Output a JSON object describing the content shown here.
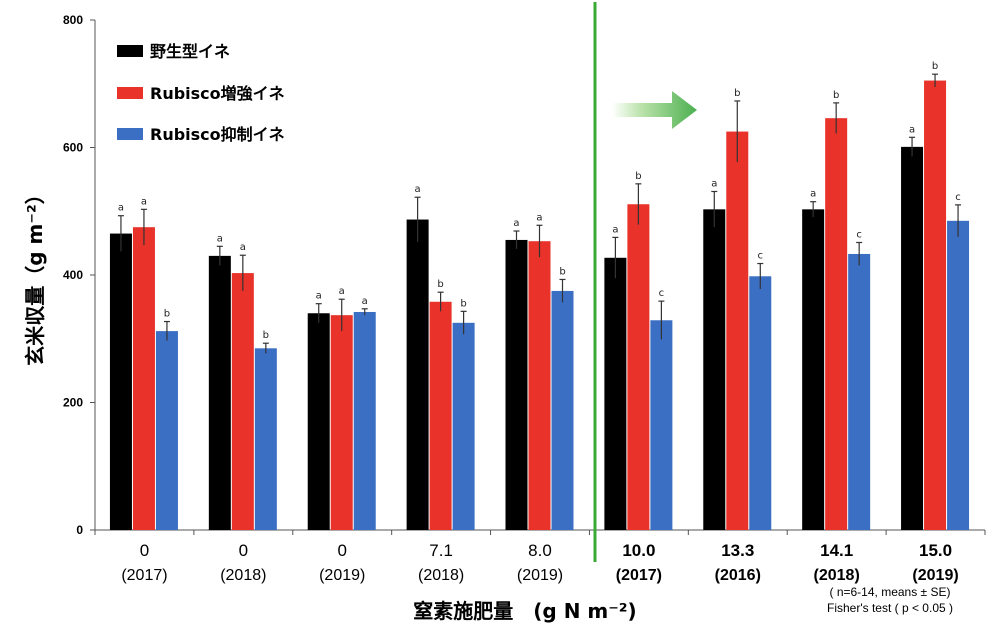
{
  "chart_data": {
    "type": "bar",
    "ylabel": "玄米収量（g m⁻²）",
    "xlabel": "窒素施肥量　(g N m⁻²)",
    "ylim": [
      0,
      800
    ],
    "yticks": [
      "0",
      "200",
      "400",
      "600",
      "800"
    ],
    "grid": false,
    "legend_position": "top-left",
    "categories": [
      {
        "n": "0",
        "year": "(2017)",
        "bold": false
      },
      {
        "n": "0",
        "year": "(2018)",
        "bold": false
      },
      {
        "n": "0",
        "year": "(2019)",
        "bold": false
      },
      {
        "n": "7.1",
        "year": "(2018)",
        "bold": false
      },
      {
        "n": "8.0",
        "year": "(2019)",
        "bold": false
      },
      {
        "n": "10.0",
        "year": "(2017)",
        "bold": true
      },
      {
        "n": "13.3",
        "year": "(2016)",
        "bold": true
      },
      {
        "n": "14.1",
        "year": "(2018)",
        "bold": true
      },
      {
        "n": "15.0",
        "year": "(2019)",
        "bold": true
      }
    ],
    "series": [
      {
        "name": "野生型イネ",
        "color": "#000000",
        "values": [
          465,
          430,
          340,
          487,
          455,
          427,
          503,
          503,
          601
        ],
        "errors": [
          28,
          15,
          15,
          35,
          14,
          32,
          28,
          12,
          15
        ],
        "labels": [
          "a",
          "a",
          "a",
          "a",
          "a",
          "a",
          "a",
          "a",
          "a"
        ]
      },
      {
        "name": "Rubisco増強イネ",
        "color": "#e8322a",
        "values": [
          475,
          403,
          337,
          358,
          453,
          511,
          625,
          646,
          705
        ],
        "errors": [
          28,
          28,
          25,
          15,
          25,
          32,
          48,
          24,
          10
        ],
        "labels": [
          "a",
          "a",
          "a",
          "b",
          "a",
          "b",
          "b",
          "b",
          "b"
        ]
      },
      {
        "name": "Rubisco抑制イネ",
        "color": "#3b6fc4",
        "values": [
          312,
          285,
          342,
          325,
          375,
          329,
          398,
          433,
          485
        ],
        "errors": [
          15,
          8,
          5,
          18,
          18,
          30,
          20,
          18,
          25
        ],
        "labels": [
          "b",
          "b",
          "a",
          "b",
          "b",
          "c",
          "c",
          "c",
          "c"
        ]
      }
    ],
    "annotations": {
      "divider_color": "#3aaa35",
      "arrow_color": "#4caf50",
      "note_line1": "( n=6-14, means ± SE)",
      "note_line2": "Fisher's test ( p < 0.05 )"
    }
  }
}
